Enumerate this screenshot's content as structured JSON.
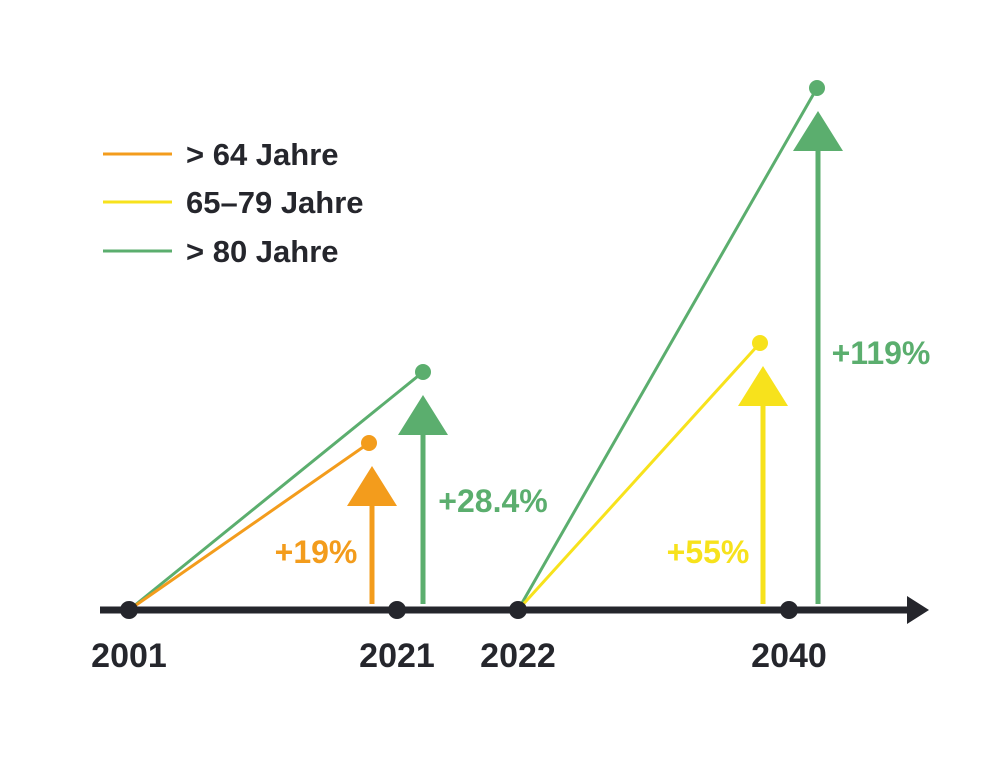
{
  "colors": {
    "axis": "#25262c",
    "orange": "#f39c1c",
    "yellow": "#f7e21c",
    "green": "#5bae6e"
  },
  "chart_data": {
    "type": "line",
    "legend": {
      "placement": "top-left",
      "entries": [
        {
          "label": "> 64 Jahre",
          "color": "#f39c1c"
        },
        {
          "label": "65–79 Jahre",
          "color": "#f7e21c"
        },
        {
          "label": "> 80 Jahre",
          "color": "#5bae6e"
        }
      ]
    },
    "x_ticks": [
      "2001",
      "2021",
      "2022",
      "2040"
    ],
    "series": [
      {
        "name": "> 64 Jahre",
        "color": "#f39c1c",
        "start": "2001",
        "end": "2021",
        "change_pct": 19,
        "label": "+19%"
      },
      {
        "name": "> 80 Jahre",
        "color": "#5bae6e",
        "start": "2001",
        "end": "2021",
        "change_pct": 28.4,
        "label": "+28.4%"
      },
      {
        "name": "65–79 Jahre",
        "color": "#f7e21c",
        "start": "2022",
        "end": "2040",
        "change_pct": 55,
        "label": "+55%"
      },
      {
        "name": "> 80 Jahre",
        "color": "#5bae6e",
        "start": "2022",
        "end": "2040",
        "change_pct": 119,
        "label": "+119%"
      }
    ]
  }
}
